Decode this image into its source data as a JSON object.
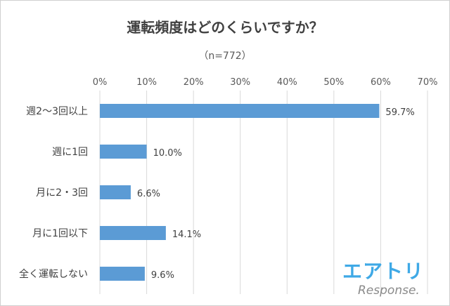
{
  "chart_data": {
    "type": "bar",
    "orientation": "horizontal",
    "title": "運転頻度はどのくらいですか？",
    "subtitle": "（n=772）",
    "categories": [
      "週2～3回以上",
      "週に1回",
      "月に2・3回",
      "月に1回以下",
      "全く運転しない"
    ],
    "values": [
      59.7,
      10.0,
      6.6,
      14.1,
      9.6
    ],
    "value_labels": [
      "59.7%",
      "10.0%",
      "6.6%",
      "14.1%",
      "9.6%"
    ],
    "xlim": [
      0,
      70
    ],
    "xticks": [
      0,
      10,
      20,
      30,
      40,
      50,
      60,
      70
    ],
    "xtick_labels": [
      "0%",
      "10%",
      "20%",
      "30%",
      "40%",
      "50%",
      "60%",
      "70%"
    ],
    "xaxis_position": "top",
    "grid": true,
    "bar_color": "#5b9bd5",
    "grid_color": "#d9d9d9"
  },
  "logo": {
    "name": "エアトリ",
    "sub": "Response."
  }
}
